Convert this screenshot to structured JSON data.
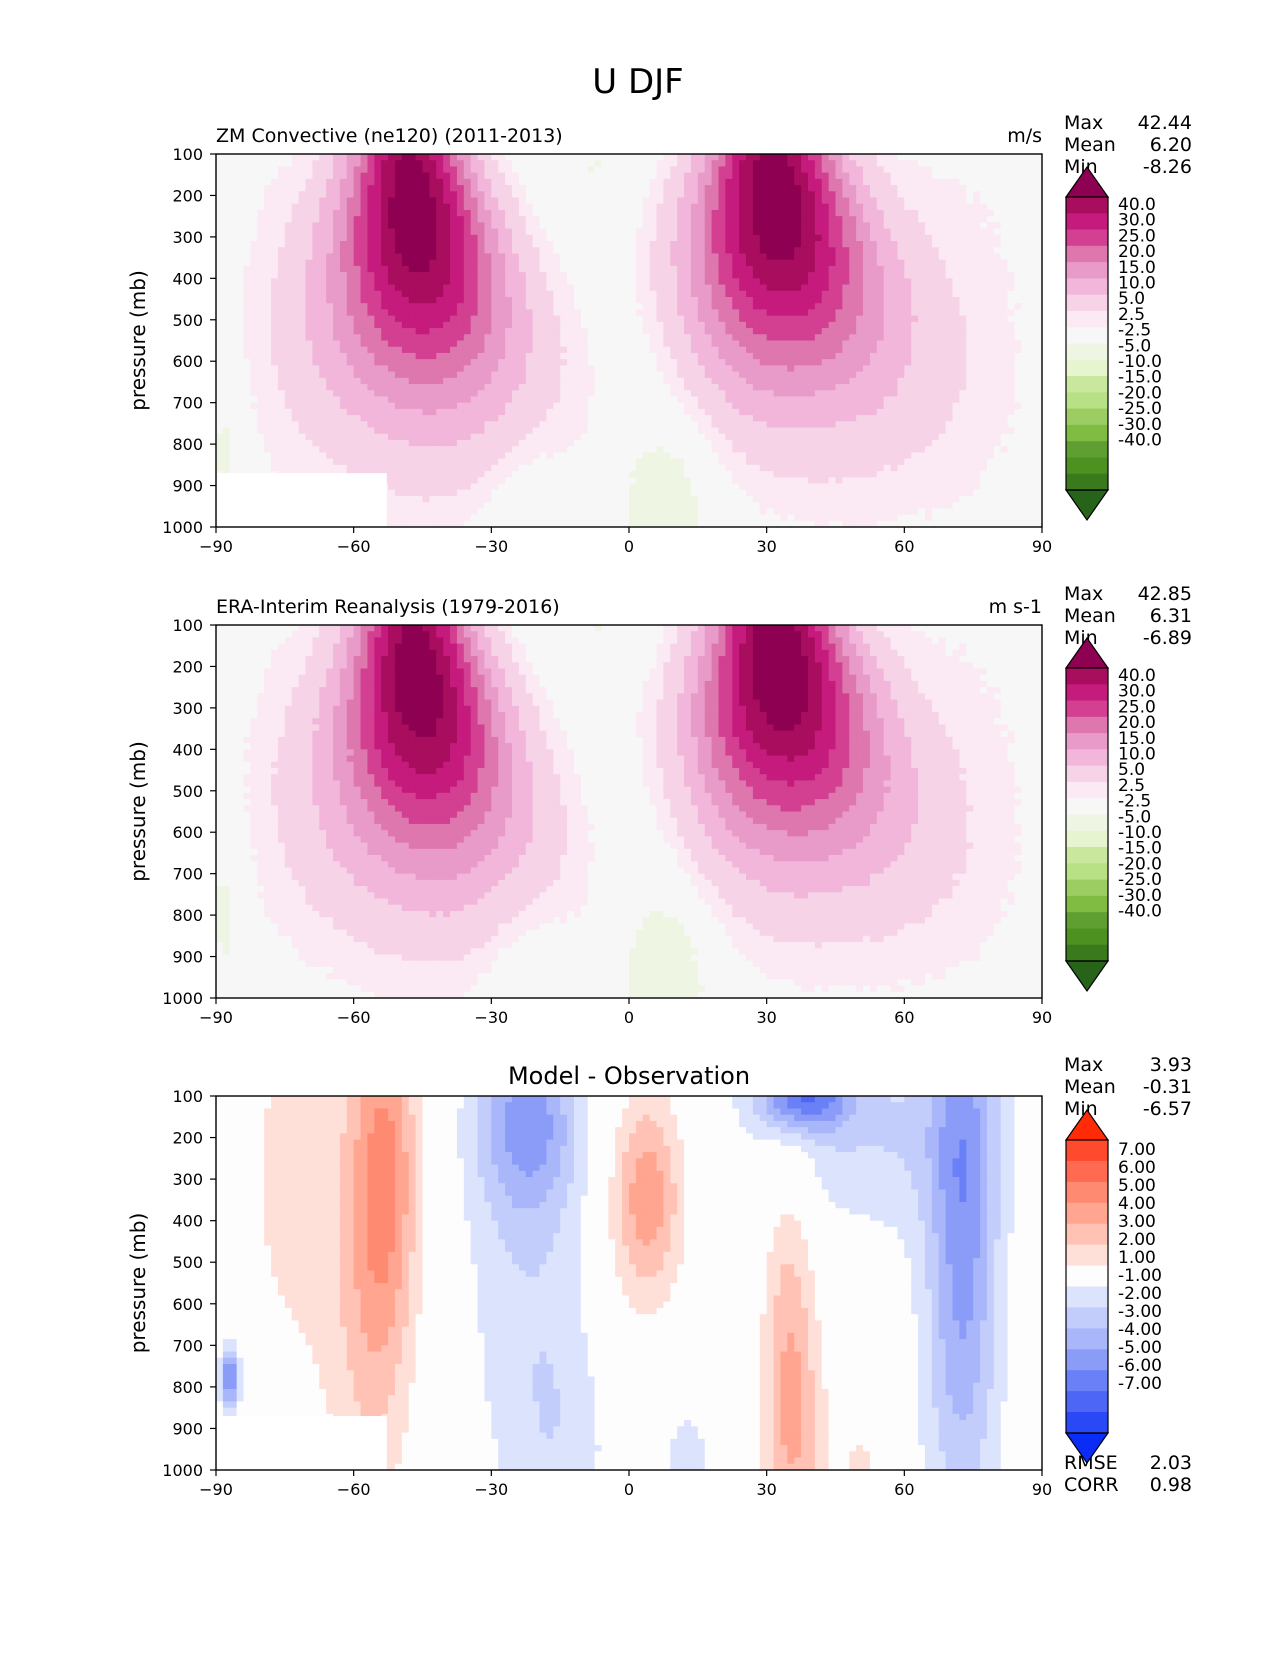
{
  "title": "U DJF",
  "chart_data": [
    {
      "type": "heatmap",
      "title": "ZM Convective (ne120) (2011-2013)",
      "units": "m/s",
      "ylabel": "pressure (mb)",
      "xlim": [
        -90,
        90
      ],
      "ylim": [
        1000,
        100
      ],
      "x_ticks": [
        "−90",
        "−60",
        "−30",
        "0",
        "30",
        "60",
        "90"
      ],
      "y_ticks": [
        "100",
        "200",
        "300",
        "400",
        "500",
        "600",
        "700",
        "800",
        "900",
        "1000"
      ],
      "stats": [
        {
          "label": "Max",
          "value": "42.44"
        },
        {
          "label": "Mean",
          "value": "6.20"
        },
        {
          "label": "Min",
          "value": "-8.26"
        }
      ],
      "colorbar": {
        "labels": [
          "40.0",
          "30.0",
          "25.0",
          "20.0",
          "15.0",
          "10.0",
          "5.0",
          "2.5",
          "-2.5",
          "-5.0",
          "-10.0",
          "-15.0",
          "-20.0",
          "-25.0",
          "-30.0",
          "-40.0"
        ],
        "colors": [
          "#8e0152",
          "#a90d5e",
          "#c51b7d",
          "#d33f91",
          "#de77ae",
          "#e89bc8",
          "#f1b6da",
          "#f7d3e8",
          "#fbe9f3",
          "#f7f7f7",
          "#eef5e3",
          "#e6f5d0",
          "#c9e89e",
          "#b8e186",
          "#9bcd63",
          "#7fbc41",
          "#5f9f32",
          "#4d9221",
          "#3a7a1c",
          "#276419"
        ]
      },
      "jets": [
        {
          "lat": -48,
          "p": 240,
          "u": 42
        },
        {
          "lat": 31,
          "p": 210,
          "u": 42
        }
      ]
    },
    {
      "type": "heatmap",
      "title": "ERA-Interim Reanalysis (1979-2016)",
      "units": "m s-1",
      "ylabel": "pressure (mb)",
      "xlim": [
        -90,
        90
      ],
      "ylim": [
        1000,
        100
      ],
      "x_ticks": [
        "−90",
        "−60",
        "−30",
        "0",
        "30",
        "60",
        "90"
      ],
      "y_ticks": [
        "100",
        "200",
        "300",
        "400",
        "500",
        "600",
        "700",
        "800",
        "900",
        "1000"
      ],
      "stats": [
        {
          "label": "Max",
          "value": "42.85"
        },
        {
          "label": "Mean",
          "value": "6.31"
        },
        {
          "label": "Min",
          "value": "-6.89"
        }
      ],
      "colorbar": {
        "labels": [
          "40.0",
          "30.0",
          "25.0",
          "20.0",
          "15.0",
          "10.0",
          "5.0",
          "2.5",
          "-2.5",
          "-5.0",
          "-10.0",
          "-15.0",
          "-20.0",
          "-25.0",
          "-30.0",
          "-40.0"
        ],
        "colors": [
          "#8e0152",
          "#a90d5e",
          "#c51b7d",
          "#d33f91",
          "#de77ae",
          "#e89bc8",
          "#f1b6da",
          "#f7d3e8",
          "#fbe9f3",
          "#f7f7f7",
          "#eef5e3",
          "#e6f5d0",
          "#c9e89e",
          "#b8e186",
          "#9bcd63",
          "#7fbc41",
          "#5f9f32",
          "#4d9221",
          "#3a7a1c",
          "#276419"
        ]
      },
      "jets": [
        {
          "lat": -47,
          "p": 230,
          "u": 42
        },
        {
          "lat": 32,
          "p": 190,
          "u": 43
        }
      ]
    },
    {
      "type": "heatmap",
      "title": "Model - Observation",
      "ylabel": "pressure (mb)",
      "xlim": [
        -90,
        90
      ],
      "ylim": [
        1000,
        100
      ],
      "x_ticks": [
        "−90",
        "−60",
        "−30",
        "0",
        "30",
        "60",
        "90"
      ],
      "y_ticks": [
        "100",
        "200",
        "300",
        "400",
        "500",
        "600",
        "700",
        "800",
        "900",
        "1000"
      ],
      "stats": [
        {
          "label": "Max",
          "value": "3.93"
        },
        {
          "label": "Mean",
          "value": "-0.31"
        },
        {
          "label": "Min",
          "value": "-6.57"
        }
      ],
      "metrics": [
        {
          "label": "RMSE",
          "value": "2.03"
        },
        {
          "label": "CORR",
          "value": "0.98"
        }
      ],
      "colorbar": {
        "labels": [
          "7.00",
          "6.00",
          "5.00",
          "4.00",
          "3.00",
          "2.00",
          "1.00",
          "-1.00",
          "-2.00",
          "-3.00",
          "-4.00",
          "-5.00",
          "-6.00",
          "-7.00"
        ],
        "colors": [
          "#ff2b06",
          "#ff4a2e",
          "#ff6a50",
          "#ff8a72",
          "#ffa590",
          "#ffc2b4",
          "#ffe0d8",
          "#fdfdfd",
          "#dce3fd",
          "#c3cdfb",
          "#a9b6fa",
          "#8a9cf8",
          "#6a80f6",
          "#4d66f6",
          "#2a49f6",
          "#0a2cf6"
        ]
      }
    }
  ]
}
